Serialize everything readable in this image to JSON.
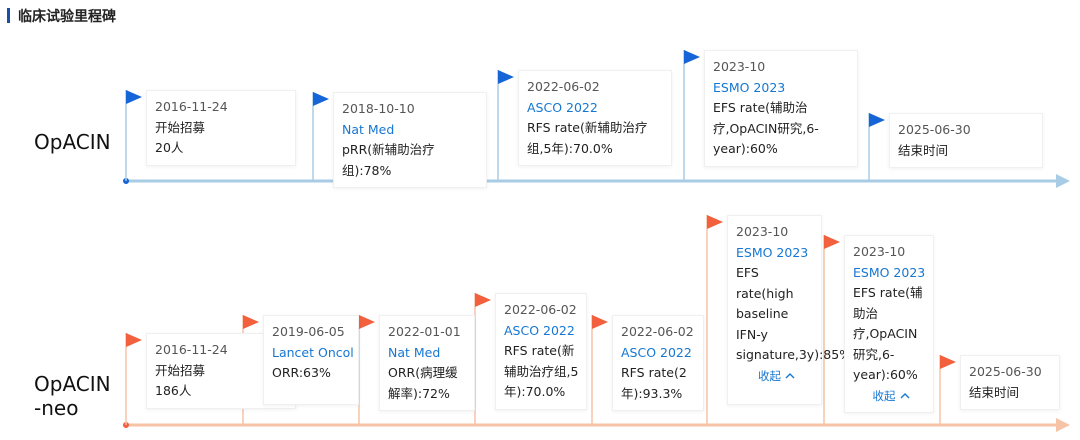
{
  "header": {
    "title": "临床试验里程碑"
  },
  "tracks": [
    {
      "name": [
        "OpACIN"
      ],
      "theme": "blue",
      "events": [
        {
          "date": "2016-11-24",
          "lines": [
            "开始招募",
            "20人"
          ]
        },
        {
          "date": "2018-10-10",
          "source": "Nat Med",
          "lines": [
            "pRR(新辅助治疗组):78%"
          ]
        },
        {
          "date": "2022-06-02",
          "source": "ASCO 2022",
          "lines": [
            "RFS rate(新辅助治疗组,5年):70.0%"
          ]
        },
        {
          "date": "2023-10",
          "source": "ESMO 2023",
          "lines": [
            "EFS rate(辅助治疗,OpACIN研究,6-year):60%"
          ]
        },
        {
          "date": "2025-06-30",
          "lines": [
            "结束时间"
          ]
        }
      ]
    },
    {
      "name": [
        "OpACIN",
        "-neo"
      ],
      "theme": "orange",
      "events": [
        {
          "date": "2016-11-24",
          "lines": [
            "开始招募",
            "186人"
          ]
        },
        {
          "date": "2019-06-05",
          "source": "Lancet Oncol",
          "lines": [
            "ORR:63%"
          ]
        },
        {
          "date": "2022-01-01",
          "source": "Nat Med",
          "lines": [
            "ORR(病理缓解率):72%"
          ]
        },
        {
          "date": "2022-06-02",
          "source": "ASCO 2022",
          "lines": [
            "RFS rate(新辅助治疗组,5年):70.0%"
          ]
        },
        {
          "date": "2022-06-02",
          "source": "ASCO 2022",
          "lines": [
            "RFS rate(2年):93.3%"
          ]
        },
        {
          "date": "2023-10",
          "source": "ESMO 2023",
          "lines": [
            "EFS rate(high baseline IFN-y signature,3y):85%"
          ],
          "toggle": "收起"
        },
        {
          "date": "2023-10",
          "source": "ESMO 2023",
          "lines": [
            "EFS rate(辅助治疗,OpACIN研究,6-year):60%"
          ],
          "toggle": "收起"
        },
        {
          "date": "2025-06-30",
          "lines": [
            "结束时间"
          ]
        }
      ]
    }
  ]
}
